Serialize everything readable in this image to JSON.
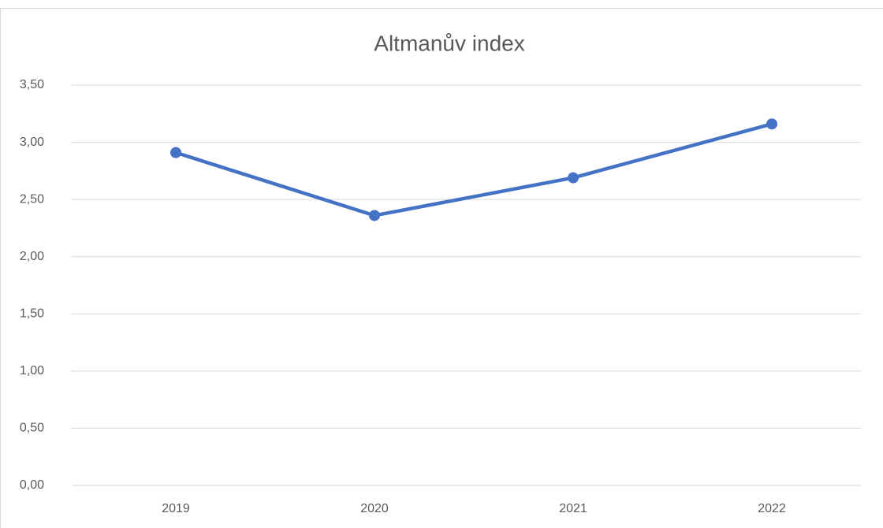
{
  "chart_data": {
    "type": "line",
    "title": "Altmanův index",
    "categories": [
      "2019",
      "2020",
      "2021",
      "2022"
    ],
    "series": [
      {
        "name": "Altmanův index",
        "color": "#4472c4",
        "values": [
          2.91,
          2.36,
          2.69,
          3.16
        ]
      }
    ],
    "ylim": [
      0,
      3.5
    ],
    "yticks": [
      {
        "value": 0,
        "label": "0,00"
      },
      {
        "value": 0.5,
        "label": "0,50"
      },
      {
        "value": 1,
        "label": "1,00"
      },
      {
        "value": 1.5,
        "label": "1,50"
      },
      {
        "value": 2,
        "label": "2,00"
      },
      {
        "value": 2.5,
        "label": "2,50"
      },
      {
        "value": 3,
        "label": "3,00"
      },
      {
        "value": 3.5,
        "label": "3,50"
      }
    ],
    "grid": true
  }
}
